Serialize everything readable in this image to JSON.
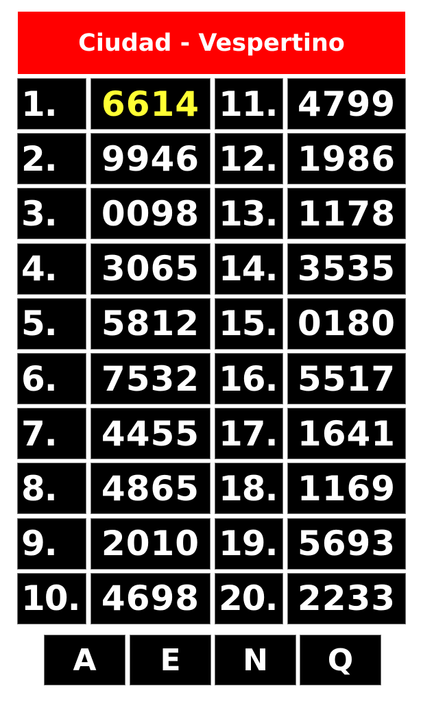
{
  "title": "Ciudad - Vespertino",
  "highlight_color": "#ffff33",
  "header_color": "#ff0000",
  "left": [
    {
      "label": "1.",
      "value": "6614",
      "highlight": true
    },
    {
      "label": "2.",
      "value": "9946"
    },
    {
      "label": "3.",
      "value": "0098"
    },
    {
      "label": "4.",
      "value": "3065"
    },
    {
      "label": "5.",
      "value": "5812"
    },
    {
      "label": "6.",
      "value": "7532"
    },
    {
      "label": "7.",
      "value": "4455"
    },
    {
      "label": "8.",
      "value": "4865"
    },
    {
      "label": "9.",
      "value": "2010"
    },
    {
      "label": "10.",
      "value": "4698"
    }
  ],
  "right": [
    {
      "label": "11.",
      "value": "4799"
    },
    {
      "label": "12.",
      "value": "1986"
    },
    {
      "label": "13.",
      "value": "1178"
    },
    {
      "label": "14.",
      "value": "3535"
    },
    {
      "label": "15.",
      "value": "0180"
    },
    {
      "label": "16.",
      "value": "5517"
    },
    {
      "label": "17.",
      "value": "1641"
    },
    {
      "label": "18.",
      "value": "1169"
    },
    {
      "label": "19.",
      "value": "5693"
    },
    {
      "label": "20.",
      "value": "2233"
    }
  ],
  "letters": [
    "A",
    "E",
    "N",
    "Q"
  ]
}
